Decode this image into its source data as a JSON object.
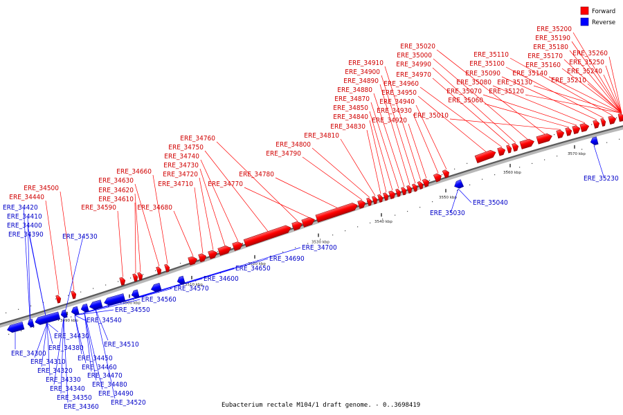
{
  "caption": "Eubacterium rectale M104/1 draft genome. - 0..3698419",
  "legend": {
    "forward_label": "Forward",
    "reverse_label": "Reverse",
    "forward_color": "#ff0000",
    "reverse_color": "#0000ff"
  },
  "axis_ticks": [
    "3490 kbp",
    "3500 kbp",
    "3510 kbp",
    "3520 kbp",
    "3530 kbp",
    "3540 kbp",
    "3550 kbp",
    "3560 kbp",
    "3570 kbp"
  ],
  "forward_genes": [
    "ERE_34440",
    "ERE_34500",
    "ERE_34590",
    "ERE_34610",
    "ERE_34620",
    "ERE_34630",
    "ERE_34660",
    "ERE_34680",
    "ERE_34710",
    "ERE_34720",
    "ERE_34730",
    "ERE_34740",
    "ERE_34750",
    "ERE_34760",
    "ERE_34770",
    "ERE_34780",
    "ERE_34790",
    "ERE_34800",
    "ERE_34810",
    "ERE_34830",
    "ERE_34840",
    "ERE_34850",
    "ERE_34870",
    "ERE_34880",
    "ERE_34890",
    "ERE_34900",
    "ERE_34910",
    "ERE_34920",
    "ERE_34930",
    "ERE_34940",
    "ERE_34950",
    "ERE_34960",
    "ERE_34970",
    "ERE_34990",
    "ERE_35000",
    "ERE_35020",
    "ERE_35010",
    "ERE_35060",
    "ERE_35070",
    "ERE_35080",
    "ERE_35090",
    "ERE_35100",
    "ERE_35110",
    "ERE_35120",
    "ERE_35130",
    "ERE_35140",
    "ERE_35160",
    "ERE_35170",
    "ERE_35180",
    "ERE_35190",
    "ERE_35200",
    "ERE_35210",
    "ERE_35240",
    "ERE_35250",
    "ERE_35260"
  ],
  "reverse_genes_top": [
    "ERE_34420",
    "ERE_34410",
    "ERE_34400",
    "ERE_34390",
    "ERE_34530",
    "ERE_34700",
    "ERE_34690",
    "ERE_34650",
    "ERE_34600",
    "ERE_34570",
    "ERE_34560",
    "ERE_34550",
    "ERE_34540",
    "ERE_35040",
    "ERE_35030",
    "ERE_35230"
  ],
  "reverse_genes_bottom": [
    "ERE_34430",
    "ERE_34380",
    "ERE_34300",
    "ERE_34310",
    "ERE_34320",
    "ERE_34330",
    "ERE_34340",
    "ERE_34350",
    "ERE_34360",
    "ERE_34450",
    "ERE_34460",
    "ERE_34470",
    "ERE_34480",
    "ERE_34490",
    "ERE_34510",
    "ERE_34520"
  ]
}
